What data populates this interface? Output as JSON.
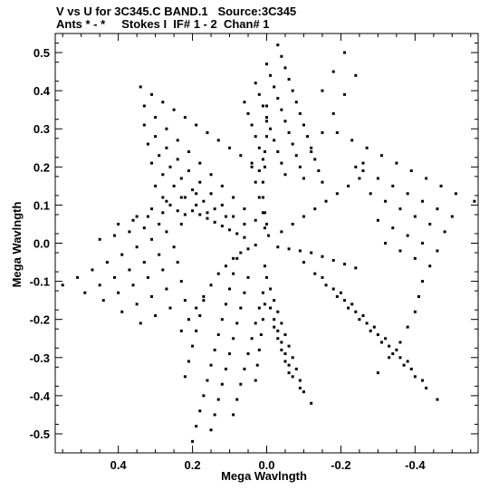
{
  "header": {
    "line1": "V vs U for 3C345.C BAND.1   Source:3C345",
    "line2": "Ants * - *     Stokes I  IF# 1 - 2  Chan# 1"
  },
  "chart_data": {
    "type": "scatter",
    "title": "V vs U for 3C345.C BAND.1   Source:3C345",
    "subtitle": "Ants * - *     Stokes I  IF# 1 - 2  Chan# 1",
    "xlabel": "Mega Wavlngth",
    "ylabel": "Mega Wavlngth",
    "xlim": [
      0.57,
      -0.57
    ],
    "ylim": [
      -0.55,
      0.55
    ],
    "x_ticks": [
      0.4,
      0.2,
      0.0,
      -0.2,
      -0.4
    ],
    "x_tick_labels": [
      "0.4",
      "0.2",
      "0.0",
      "-0.2",
      "-0.4"
    ],
    "y_ticks": [
      0.5,
      0.4,
      0.3,
      0.2,
      0.1,
      0.0,
      -0.1,
      -0.2,
      -0.3,
      -0.4,
      -0.5
    ],
    "y_tick_labels": [
      "0.5",
      "0.4",
      "0.3",
      "0.2",
      "0.1",
      "0.0",
      "-0.1",
      "-0.2",
      "-0.3",
      "-0.4",
      "-0.5"
    ],
    "grid": false,
    "marker_color": "#000000",
    "points": [
      [
        0.34,
        0.41
      ],
      [
        0.31,
        0.39
      ],
      [
        0.28,
        0.37
      ],
      [
        0.25,
        0.35
      ],
      [
        0.22,
        0.33
      ],
      [
        0.19,
        0.31
      ],
      [
        0.16,
        0.29
      ],
      [
        0.13,
        0.27
      ],
      [
        0.1,
        0.25
      ],
      [
        0.07,
        0.23
      ],
      [
        0.04,
        0.21
      ],
      [
        0.02,
        0.19
      ],
      [
        0.33,
        0.36
      ],
      [
        0.3,
        0.33
      ],
      [
        0.27,
        0.3
      ],
      [
        0.24,
        0.27
      ],
      [
        0.21,
        0.24
      ],
      [
        0.18,
        0.21
      ],
      [
        0.15,
        0.18
      ],
      [
        0.12,
        0.15
      ],
      [
        0.09,
        0.12
      ],
      [
        0.06,
        0.09
      ],
      [
        0.03,
        0.06
      ],
      [
        0.33,
        0.31
      ],
      [
        0.3,
        0.28
      ],
      [
        0.27,
        0.25
      ],
      [
        0.24,
        0.22
      ],
      [
        0.21,
        0.19
      ],
      [
        0.18,
        0.16
      ],
      [
        0.15,
        0.13
      ],
      [
        0.12,
        0.1
      ],
      [
        0.09,
        0.07
      ],
      [
        0.06,
        0.05
      ],
      [
        0.32,
        0.26
      ],
      [
        0.29,
        0.23
      ],
      [
        0.26,
        0.2
      ],
      [
        0.23,
        0.17
      ],
      [
        0.2,
        0.14
      ],
      [
        0.17,
        0.11
      ],
      [
        0.14,
        0.09
      ],
      [
        0.11,
        0.07
      ],
      [
        0.31,
        0.21
      ],
      [
        0.28,
        0.18
      ],
      [
        0.25,
        0.15
      ],
      [
        0.22,
        0.12
      ],
      [
        0.19,
        0.1
      ],
      [
        0.16,
        0.08
      ],
      [
        0.3,
        0.15
      ],
      [
        0.28,
        0.12
      ],
      [
        0.26,
        0.1
      ],
      [
        0.24,
        0.085
      ],
      [
        0.22,
        0.075
      ],
      [
        0.2,
        0.085
      ],
      [
        0.18,
        0.075
      ],
      [
        0.16,
        0.065
      ],
      [
        0.14,
        0.055
      ],
      [
        0.12,
        0.045
      ],
      [
        0.1,
        0.035
      ],
      [
        0.08,
        0.025
      ],
      [
        0.06,
        0.015
      ],
      [
        -0.03,
        0.52
      ],
      [
        -0.04,
        0.49
      ],
      [
        -0.05,
        0.46
      ],
      [
        -0.06,
        0.43
      ],
      [
        -0.07,
        0.4
      ],
      [
        -0.08,
        0.37
      ],
      [
        -0.09,
        0.34
      ],
      [
        -0.1,
        0.31
      ],
      [
        -0.11,
        0.28
      ],
      [
        -0.12,
        0.25
      ],
      [
        -0.13,
        0.22
      ],
      [
        -0.14,
        0.19
      ],
      [
        -0.15,
        0.16
      ],
      [
        0.0,
        0.47
      ],
      [
        -0.01,
        0.44
      ],
      [
        -0.02,
        0.41
      ],
      [
        -0.03,
        0.38
      ],
      [
        -0.04,
        0.35
      ],
      [
        -0.05,
        0.32
      ],
      [
        -0.06,
        0.29
      ],
      [
        -0.07,
        0.26
      ],
      [
        -0.08,
        0.23
      ],
      [
        -0.09,
        0.2
      ],
      [
        -0.1,
        0.17
      ],
      [
        0.03,
        0.42
      ],
      [
        0.02,
        0.39
      ],
      [
        0.01,
        0.36
      ],
      [
        0.0,
        0.33
      ],
      [
        -0.01,
        0.3
      ],
      [
        -0.02,
        0.27
      ],
      [
        -0.03,
        0.24
      ],
      [
        -0.04,
        0.21
      ],
      [
        -0.05,
        0.18
      ],
      [
        0.06,
        0.37
      ],
      [
        0.05,
        0.34
      ],
      [
        0.04,
        0.31
      ],
      [
        0.03,
        0.28
      ],
      [
        0.02,
        0.25
      ],
      [
        0.01,
        0.22
      ],
      [
        -0.21,
        0.5
      ],
      [
        -0.18,
        0.45
      ],
      [
        -0.15,
        0.4
      ],
      [
        -0.24,
        0.44
      ],
      [
        -0.21,
        0.39
      ],
      [
        -0.18,
        0.34
      ],
      [
        -0.15,
        0.29
      ],
      [
        -0.12,
        0.24
      ],
      [
        0.04,
        0.2
      ],
      [
        0.03,
        0.16
      ],
      [
        0.02,
        0.12
      ],
      [
        0.01,
        0.08
      ],
      [
        0.005,
        0.04
      ],
      [
        -0.005,
        0.02
      ],
      [
        -0.24,
        0.2
      ],
      [
        -0.26,
        0.21
      ],
      [
        -0.25,
        0.17
      ],
      [
        -0.22,
        0.15
      ],
      [
        -0.19,
        0.13
      ],
      [
        -0.16,
        0.11
      ],
      [
        -0.13,
        0.09
      ],
      [
        -0.1,
        0.07
      ],
      [
        -0.07,
        0.05
      ],
      [
        -0.04,
        0.03
      ],
      [
        -0.56,
        0.11
      ],
      [
        -0.51,
        0.13
      ],
      [
        -0.47,
        0.15
      ],
      [
        -0.43,
        0.17
      ],
      [
        -0.39,
        0.19
      ],
      [
        -0.35,
        0.21
      ],
      [
        -0.31,
        0.23
      ],
      [
        -0.27,
        0.25
      ],
      [
        -0.23,
        0.27
      ],
      [
        -0.19,
        0.29
      ],
      [
        -0.5,
        0.07
      ],
      [
        -0.46,
        0.09
      ],
      [
        -0.42,
        0.11
      ],
      [
        -0.38,
        0.13
      ],
      [
        -0.34,
        0.15
      ],
      [
        -0.3,
        0.17
      ],
      [
        -0.26,
        0.19
      ],
      [
        -0.48,
        0.03
      ],
      [
        -0.44,
        0.05
      ],
      [
        -0.4,
        0.07
      ],
      [
        -0.36,
        0.09
      ],
      [
        -0.32,
        0.11
      ],
      [
        -0.28,
        0.13
      ],
      [
        -0.46,
        -0.02
      ],
      [
        -0.42,
        0.0
      ],
      [
        -0.38,
        0.02
      ],
      [
        -0.34,
        0.04
      ],
      [
        -0.3,
        0.06
      ],
      [
        -0.44,
        -0.06
      ],
      [
        -0.4,
        -0.04
      ],
      [
        -0.36,
        -0.02
      ],
      [
        -0.32,
        0.0
      ],
      [
        -0.03,
        -0.01
      ],
      [
        -0.06,
        -0.015
      ],
      [
        -0.09,
        -0.02
      ],
      [
        -0.12,
        -0.025
      ],
      [
        -0.15,
        -0.035
      ],
      [
        -0.18,
        -0.045
      ],
      [
        -0.21,
        -0.055
      ],
      [
        -0.24,
        -0.065
      ],
      [
        -0.42,
        -0.1
      ],
      [
        -0.41,
        -0.14
      ],
      [
        -0.4,
        -0.18
      ],
      [
        -0.38,
        -0.22
      ],
      [
        -0.36,
        -0.26
      ],
      [
        -0.33,
        -0.3
      ],
      [
        -0.3,
        -0.34
      ],
      [
        -0.46,
        -0.41
      ],
      [
        -0.43,
        -0.38
      ],
      [
        -0.4,
        -0.35
      ],
      [
        -0.37,
        -0.32
      ],
      [
        -0.34,
        -0.29
      ],
      [
        -0.31,
        -0.26
      ],
      [
        -0.28,
        -0.23
      ],
      [
        -0.25,
        -0.2
      ],
      [
        -0.22,
        -0.17
      ],
      [
        -0.19,
        -0.14
      ],
      [
        -0.16,
        -0.11
      ],
      [
        -0.13,
        -0.08
      ],
      [
        -0.1,
        -0.05
      ],
      [
        -0.42,
        -0.36
      ],
      [
        -0.39,
        -0.33
      ],
      [
        -0.36,
        -0.3
      ],
      [
        -0.33,
        -0.27
      ],
      [
        -0.3,
        -0.24
      ],
      [
        -0.27,
        -0.21
      ],
      [
        -0.24,
        -0.18
      ],
      [
        -0.21,
        -0.15
      ],
      [
        -0.18,
        -0.12
      ],
      [
        -0.15,
        -0.09
      ],
      [
        -0.38,
        -0.31
      ],
      [
        -0.35,
        -0.28
      ],
      [
        -0.32,
        -0.25
      ],
      [
        -0.29,
        -0.22
      ],
      [
        -0.26,
        -0.19
      ],
      [
        -0.23,
        -0.16
      ],
      [
        -0.2,
        -0.13
      ],
      [
        -0.12,
        -0.42
      ],
      [
        -0.1,
        -0.39
      ],
      [
        -0.09,
        -0.36
      ],
      [
        -0.08,
        -0.33
      ],
      [
        -0.07,
        -0.3
      ],
      [
        -0.06,
        -0.27
      ],
      [
        -0.05,
        -0.24
      ],
      [
        -0.04,
        -0.21
      ],
      [
        -0.03,
        -0.18
      ],
      [
        -0.02,
        -0.15
      ],
      [
        -0.01,
        -0.12
      ],
      [
        0.0,
        -0.09
      ],
      [
        0.005,
        -0.06
      ],
      [
        -0.09,
        -0.38
      ],
      [
        -0.07,
        -0.35
      ],
      [
        -0.06,
        -0.32
      ],
      [
        -0.05,
        -0.29
      ],
      [
        -0.04,
        -0.26
      ],
      [
        -0.03,
        -0.23
      ],
      [
        -0.02,
        -0.2
      ],
      [
        -0.01,
        -0.17
      ],
      [
        -0.06,
        -0.34
      ],
      [
        -0.05,
        -0.31
      ],
      [
        -0.04,
        -0.28
      ],
      [
        -0.03,
        -0.25
      ],
      [
        -0.02,
        -0.22
      ],
      [
        0.2,
        -0.52
      ],
      [
        0.19,
        -0.48
      ],
      [
        0.18,
        -0.44
      ],
      [
        0.17,
        -0.4
      ],
      [
        0.16,
        -0.36
      ],
      [
        0.15,
        -0.32
      ],
      [
        0.14,
        -0.28
      ],
      [
        0.13,
        -0.24
      ],
      [
        0.12,
        -0.2
      ],
      [
        0.11,
        -0.16
      ],
      [
        0.1,
        -0.12
      ],
      [
        0.09,
        -0.08
      ],
      [
        0.08,
        -0.04
      ],
      [
        0.15,
        -0.49
      ],
      [
        0.14,
        -0.45
      ],
      [
        0.13,
        -0.41
      ],
      [
        0.12,
        -0.37
      ],
      [
        0.11,
        -0.33
      ],
      [
        0.1,
        -0.29
      ],
      [
        0.09,
        -0.25
      ],
      [
        0.08,
        -0.21
      ],
      [
        0.07,
        -0.17
      ],
      [
        0.06,
        -0.13
      ],
      [
        0.05,
        -0.09
      ],
      [
        0.09,
        -0.45
      ],
      [
        0.08,
        -0.41
      ],
      [
        0.07,
        -0.37
      ],
      [
        0.06,
        -0.33
      ],
      [
        0.05,
        -0.29
      ],
      [
        0.04,
        -0.25
      ],
      [
        0.03,
        -0.21
      ],
      [
        0.02,
        -0.17
      ],
      [
        0.01,
        -0.13
      ],
      [
        0.03,
        -0.36
      ],
      [
        0.025,
        -0.32
      ],
      [
        0.02,
        -0.28
      ],
      [
        0.015,
        -0.24
      ],
      [
        0.01,
        -0.2
      ],
      [
        0.005,
        -0.16
      ],
      [
        0.22,
        -0.35
      ],
      [
        0.21,
        -0.31
      ],
      [
        0.2,
        -0.27
      ],
      [
        0.19,
        -0.23
      ],
      [
        0.18,
        -0.19
      ],
      [
        0.17,
        -0.15
      ],
      [
        0.23,
        -0.23
      ],
      [
        0.21,
        -0.2
      ],
      [
        0.19,
        -0.17
      ],
      [
        0.17,
        -0.14
      ],
      [
        0.15,
        -0.11
      ],
      [
        0.13,
        -0.08
      ],
      [
        0.11,
        -0.06
      ],
      [
        0.09,
        -0.04
      ],
      [
        0.07,
        -0.025
      ],
      [
        0.05,
        -0.015
      ],
      [
        0.03,
        -0.005
      ],
      [
        0.55,
        -0.11
      ],
      [
        0.51,
        -0.09
      ],
      [
        0.47,
        -0.07
      ],
      [
        0.43,
        -0.05
      ],
      [
        0.39,
        -0.03
      ],
      [
        0.35,
        -0.01
      ],
      [
        0.31,
        0.01
      ],
      [
        0.27,
        0.03
      ],
      [
        0.23,
        0.05
      ],
      [
        0.49,
        -0.13
      ],
      [
        0.45,
        -0.11
      ],
      [
        0.41,
        -0.09
      ],
      [
        0.37,
        -0.07
      ],
      [
        0.33,
        -0.05
      ],
      [
        0.29,
        -0.03
      ],
      [
        0.25,
        -0.01
      ],
      [
        0.44,
        -0.15
      ],
      [
        0.4,
        -0.13
      ],
      [
        0.36,
        -0.11
      ],
      [
        0.32,
        -0.09
      ],
      [
        0.28,
        -0.07
      ],
      [
        0.24,
        -0.05
      ],
      [
        0.39,
        -0.18
      ],
      [
        0.35,
        -0.16
      ],
      [
        0.31,
        -0.14
      ],
      [
        0.27,
        -0.12
      ],
      [
        0.23,
        -0.1
      ],
      [
        0.34,
        -0.21
      ],
      [
        0.3,
        -0.19
      ],
      [
        0.26,
        -0.17
      ],
      [
        0.22,
        -0.15
      ],
      [
        0.45,
        0.01
      ],
      [
        0.41,
        0.02
      ],
      [
        0.37,
        0.03
      ],
      [
        0.33,
        0.04
      ],
      [
        0.29,
        0.05
      ],
      [
        0.4,
        0.05
      ],
      [
        0.36,
        0.06
      ],
      [
        0.32,
        0.07
      ],
      [
        0.28,
        0.08
      ],
      [
        0.0,
        0.36
      ],
      [
        0.0,
        0.32
      ],
      [
        0.0,
        0.28
      ],
      [
        0.005,
        0.24
      ],
      [
        0.005,
        0.2
      ],
      [
        0.01,
        0.16
      ],
      [
        0.01,
        0.12
      ],
      [
        0.005,
        0.08
      ],
      [
        0.0,
        0.05
      ],
      [
        0.35,
        0.07
      ],
      [
        0.31,
        0.09
      ],
      [
        0.27,
        0.11
      ],
      [
        0.23,
        0.12
      ],
      [
        0.19,
        0.13
      ]
    ]
  }
}
